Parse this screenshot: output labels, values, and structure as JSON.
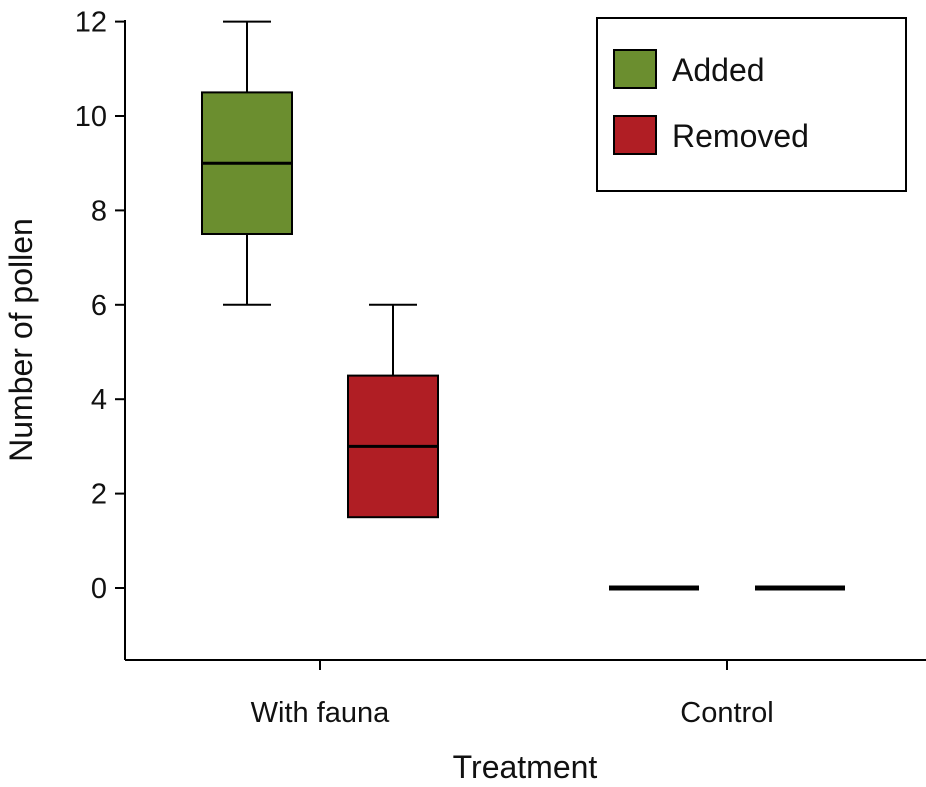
{
  "chart_data": {
    "type": "box",
    "title": "",
    "xlabel": "Treatment",
    "ylabel": "Number of pollen",
    "categories": [
      "With fauna",
      "Control"
    ],
    "ylim": [
      -1.5,
      12
    ],
    "yticks": [
      0,
      2,
      4,
      6,
      8,
      10,
      12
    ],
    "grid": false,
    "legend_position": "top-right",
    "series": [
      {
        "name": "Added",
        "color": "#6b8e2f",
        "boxes": [
          {
            "category": "With fauna",
            "min": 6,
            "q1": 7.5,
            "median": 9,
            "q3": 10.5,
            "max": 12
          },
          {
            "category": "Control",
            "min": 0,
            "q1": 0,
            "median": 0,
            "q3": 0,
            "max": 0
          }
        ]
      },
      {
        "name": "Removed",
        "color": "#b01e24",
        "boxes": [
          {
            "category": "With fauna",
            "min": 1.5,
            "q1": 1.5,
            "median": 3,
            "q3": 4.5,
            "max": 6
          },
          {
            "category": "Control",
            "min": 0,
            "q1": 0,
            "median": 0,
            "q3": 0,
            "max": 0
          }
        ]
      }
    ]
  }
}
